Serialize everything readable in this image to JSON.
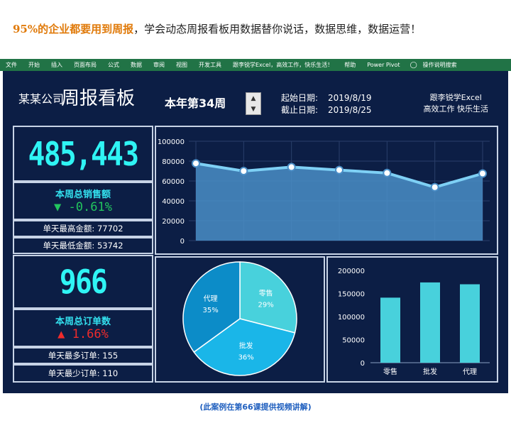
{
  "headline": {
    "highlight": "95%的企业都要用到周报",
    "rest": "，学会动态周报看板用数据替你说话，数据思维，数据运营！"
  },
  "ribbon": {
    "tabs": [
      "文件",
      "开始",
      "插入",
      "页面布局",
      "公式",
      "数据",
      "审阅",
      "视图",
      "开发工具",
      "跟李锐学Excel，高效工作，快乐生活！",
      "帮助",
      "Power Pivot"
    ],
    "tell_me": "操作说明搜索",
    "tell_me_icon": "lightbulb-icon"
  },
  "dashboard": {
    "company": "某某公司",
    "title": "周报看板",
    "week_label": "本年第34周",
    "start_label": "起始日期:",
    "start_date": "2019/8/19",
    "end_label": "截止日期:",
    "end_date": "2019/8/25",
    "slogan_line1": "跟李锐学Excel",
    "slogan_line2": "高效工作 快乐生活",
    "colors": {
      "background": "#0c1e45",
      "accent": "#2ff4f4",
      "up": "#ef2b2b",
      "down": "#22c55e"
    }
  },
  "sales": {
    "total": "485,443",
    "label": "本周总销售额",
    "change_icon": "▼",
    "change": "-0.61%",
    "max_label": "单天最高金额:",
    "max_value": "77702",
    "min_label": "单天最低金额:",
    "min_value": "53742"
  },
  "orders": {
    "total": "966",
    "label": "本周总订单数",
    "change_icon": "▲",
    "change": "1.66%",
    "max_label": "单天最多订单:",
    "max_value": "155",
    "min_label": "单天最少订单:",
    "min_value": "110"
  },
  "chart_data": [
    {
      "type": "area",
      "title": "",
      "x": [
        1,
        2,
        3,
        4,
        5,
        6,
        7
      ],
      "values": [
        77702,
        70000,
        74000,
        71000,
        68000,
        53742,
        67500
      ],
      "ylim": [
        0,
        100000
      ],
      "yticks": [
        "0",
        "20000",
        "40000",
        "60000",
        "80000",
        "100000"
      ],
      "grid": true
    },
    {
      "type": "pie",
      "labels": [
        "零售",
        "批发",
        "代理"
      ],
      "percents": [
        "29%",
        "36%",
        "35%"
      ],
      "values": [
        29,
        36,
        35
      ],
      "colors": [
        "#48d1dc",
        "#1ab6e8",
        "#0c8cc8"
      ]
    },
    {
      "type": "bar",
      "categories": [
        "零售",
        "批发",
        "代理"
      ],
      "values": [
        141000,
        174000,
        170000
      ],
      "ylim": [
        0,
        200000
      ],
      "yticks": [
        "0",
        "50000",
        "100000",
        "150000",
        "200000"
      ],
      "color": "#48d1dc"
    }
  ],
  "footer": {
    "caption": "(此案例在第66课提供视频讲解)"
  }
}
